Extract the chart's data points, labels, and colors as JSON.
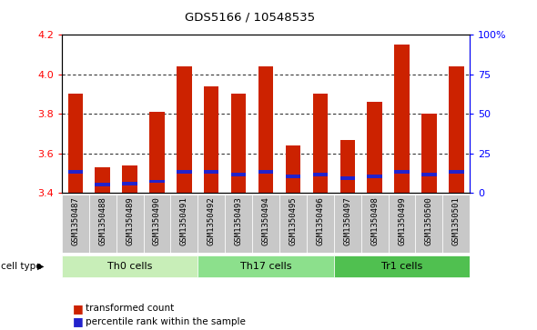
{
  "title": "GDS5166 / 10548535",
  "samples": [
    "GSM1350487",
    "GSM1350488",
    "GSM1350489",
    "GSM1350490",
    "GSM1350491",
    "GSM1350492",
    "GSM1350493",
    "GSM1350494",
    "GSM1350495",
    "GSM1350496",
    "GSM1350497",
    "GSM1350498",
    "GSM1350499",
    "GSM1350500",
    "GSM1350501"
  ],
  "red_values": [
    3.9,
    3.53,
    3.54,
    3.81,
    4.04,
    3.94,
    3.9,
    4.04,
    3.64,
    3.9,
    3.67,
    3.86,
    4.15,
    3.8,
    4.04
  ],
  "blue_bottom": [
    3.497,
    3.435,
    3.44,
    3.45,
    3.497,
    3.497,
    3.486,
    3.497,
    3.475,
    3.486,
    3.464,
    3.475,
    3.497,
    3.486,
    3.497
  ],
  "ymin": 3.4,
  "ymax": 4.2,
  "yticks": [
    3.4,
    3.6,
    3.8,
    4.0,
    4.2
  ],
  "right_ytick_labels": [
    "0",
    "25",
    "50",
    "75",
    "100%"
  ],
  "right_ytick_vals_pct": [
    0,
    25,
    50,
    75,
    100
  ],
  "cell_groups": [
    {
      "label": "Th0 cells",
      "start": 0,
      "end": 4,
      "color": "#c8eeb8"
    },
    {
      "label": "Th17 cells",
      "start": 5,
      "end": 9,
      "color": "#8ce08c"
    },
    {
      "label": "Tr1 cells",
      "start": 10,
      "end": 14,
      "color": "#50c050"
    }
  ],
  "bar_color": "#cc2200",
  "blue_color": "#2222cc",
  "label_bg": "#c8c8c8",
  "plot_bg": "#ffffff",
  "cell_type_label": "cell type",
  "legend_red": "transformed count",
  "legend_blue": "percentile rank within the sample",
  "bar_width": 0.55,
  "blue_bar_height": 0.018
}
